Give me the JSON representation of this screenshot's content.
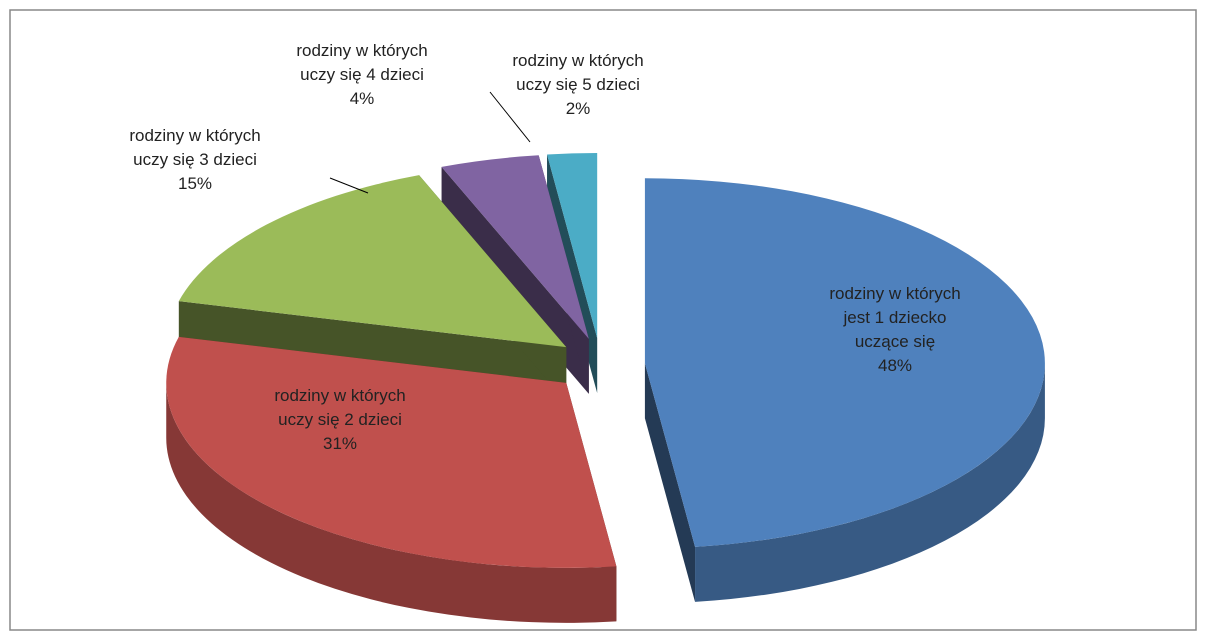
{
  "chart_data": {
    "type": "pie",
    "categories": [
      "rodziny w których jest 1 dziecko uczące się",
      "rodziny w których uczy się 2 dzieci",
      "rodziny w których uczy się 3 dzieci",
      "rodziny w których uczy się 4 dzieci",
      "rodziny w których uczy się 5 dzieci"
    ],
    "values": [
      48,
      31,
      15,
      4,
      2
    ],
    "value_labels": [
      "48%",
      "31%",
      "15%",
      "4%",
      "2%"
    ],
    "colors": [
      "#4f81bd",
      "#c0504d",
      "#9bbb59",
      "#8064a2",
      "#4bacc6"
    ]
  }
}
